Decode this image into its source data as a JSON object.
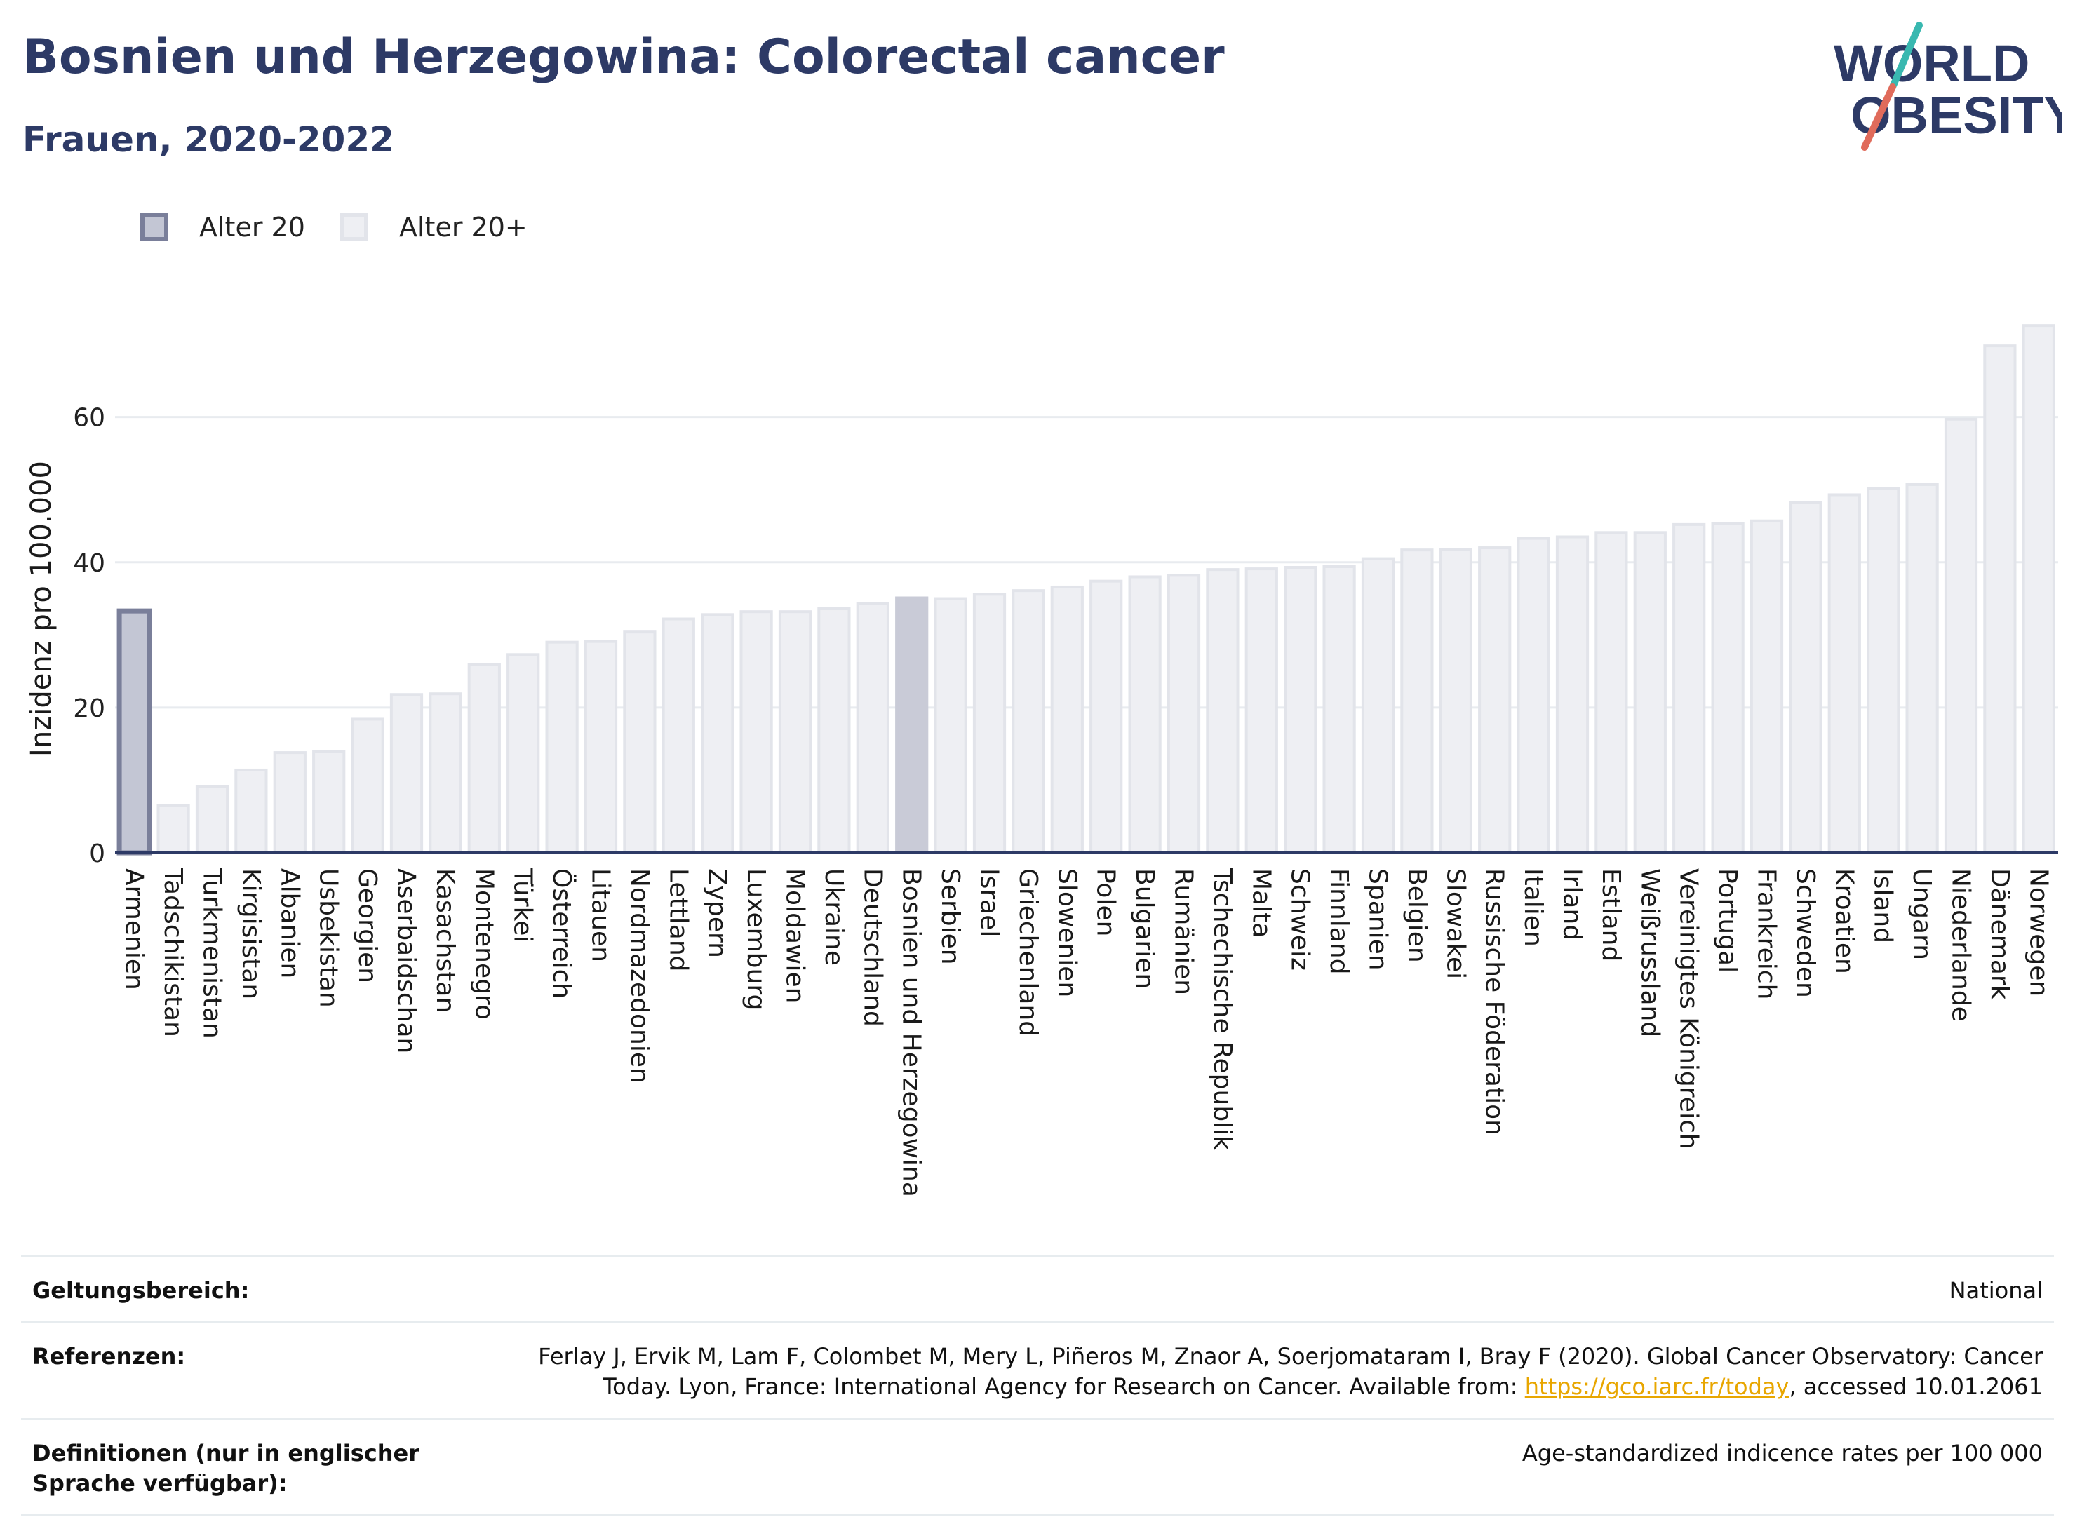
{
  "header": {
    "title": "Bosnien und Herzegowina: Colorectal cancer",
    "subtitle": "Frauen, 2020-2022"
  },
  "logo": {
    "line1": "WORLD",
    "line2": "OBESITY",
    "slash_colors": [
      "#39b8b0",
      "#e06b5b"
    ]
  },
  "colors": {
    "title": "#2d3a66",
    "highlight_fill": "#c9cbd7",
    "highlight_stroke": "#7a7f9a",
    "bar_fill": "#eeeff3",
    "bar_stroke": "#e2e4ea",
    "axis": "#2d3a66"
  },
  "legend": {
    "items": [
      {
        "label": "Alter 20",
        "fill": "#c3c6d4",
        "stroke": "#7a7f9a"
      },
      {
        "label": "Alter 20+",
        "fill": "#eeeff3",
        "stroke": "#e2e4ea"
      }
    ]
  },
  "chart_data": {
    "type": "bar",
    "ylabel": "Inzidenz pro 100.000",
    "ylim": [
      0,
      73
    ],
    "yticks": [
      0,
      20,
      40,
      60
    ],
    "grid": true,
    "legend_position": "top-left",
    "highlight_category": "Bosnien und Herzegowina",
    "categories": [
      "Armenien",
      "Tadschikistan",
      "Turkmenistan",
      "Kirgisistan",
      "Albanien",
      "Usbekistan",
      "Georgien",
      "Aserbaidschan",
      "Kasachstan",
      "Montenegro",
      "Türkei",
      "Österreich",
      "Litauen",
      "Nordmazedonien",
      "Lettland",
      "Zypern",
      "Luxemburg",
      "Moldawien",
      "Ukraine",
      "Deutschland",
      "Bosnien und Herzegowina",
      "Serbien",
      "Israel",
      "Griechenland",
      "Slowenien",
      "Polen",
      "Bulgarien",
      "Rumänien",
      "Tschechische Republik",
      "Malta",
      "Schweiz",
      "Finnland",
      "Spanien",
      "Belgien",
      "Slowakei",
      "Russische Föderation",
      "Italien",
      "Irland",
      "Estland",
      "Weißrussland",
      "Vereinigtes Königreich",
      "Portugal",
      "Frankreich",
      "Schweden",
      "Kroatien",
      "Island",
      "Ungarn",
      "Niederlande",
      "Dänemark",
      "Norwegen"
    ],
    "series": [
      {
        "name": "Alter 20",
        "values": [
          33.3,
          null,
          null,
          null,
          null,
          null,
          null,
          null,
          null,
          null,
          null,
          null,
          null,
          null,
          null,
          null,
          null,
          null,
          null,
          null,
          null,
          null,
          null,
          null,
          null,
          null,
          null,
          null,
          null,
          null,
          null,
          null,
          null,
          null,
          null,
          null,
          null,
          null,
          null,
          null,
          null,
          null,
          null,
          null,
          null,
          null,
          null,
          null,
          null,
          null
        ]
      },
      {
        "name": "Alter 20+",
        "values": [
          null,
          6.5,
          9.1,
          11.4,
          13.8,
          14.0,
          18.4,
          21.8,
          21.9,
          25.9,
          27.3,
          29.0,
          29.1,
          30.4,
          32.2,
          32.8,
          33.2,
          33.2,
          33.6,
          34.3,
          35.1,
          35.0,
          35.6,
          36.1,
          36.6,
          37.4,
          38.0,
          38.2,
          39.0,
          39.1,
          39.3,
          39.4,
          40.5,
          41.7,
          41.8,
          42.0,
          43.3,
          43.5,
          44.1,
          44.1,
          45.2,
          45.3,
          45.7,
          48.2,
          49.3,
          50.2,
          50.7,
          59.7,
          69.8,
          72.6
        ]
      }
    ]
  },
  "footer": {
    "rows": [
      {
        "label": "Geltungsbereich:",
        "value": "National"
      },
      {
        "label": "Referenzen:",
        "value_before": "Ferlay J, Ervik M, Lam F, Colombet M, Mery L, Piñeros M, Znaor A, Soerjomataram I, Bray F (2020). Global Cancer Observatory: Cancer Today. Lyon, France: International Agency for Research on Cancer. Available from: ",
        "link": "https://gco.iarc.fr/today",
        "value_after": ", accessed 10.01.2061"
      },
      {
        "label": "Definitionen (nur in englischer Sprache verfügbar):",
        "value": "Age-standardized indicence rates per 100 000"
      }
    ]
  }
}
